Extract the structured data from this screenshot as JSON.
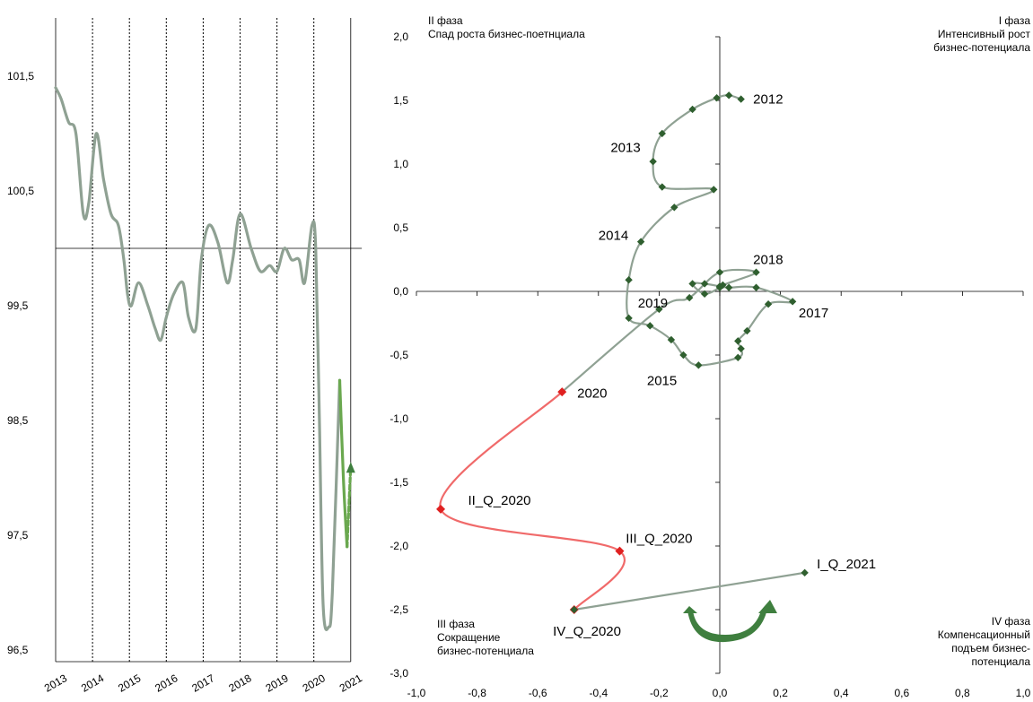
{
  "chart_data": [
    {
      "type": "line",
      "categories": [
        "2013",
        "2014",
        "2015",
        "2016",
        "2017",
        "2018",
        "2019",
        "2020",
        "2021"
      ],
      "y_ticks": [
        "101,5",
        "100,5",
        "99,5",
        "98,5",
        "97,5",
        "96,5"
      ],
      "ylim": [
        96.5,
        102.2
      ],
      "grid": "dotted vertical lines at year boundaries",
      "reference_line": 100,
      "series": [
        {
          "color": "#8fa193",
          "x": [
            2013.0,
            2013.15,
            2013.35,
            2013.55,
            2013.75,
            2013.9,
            2014.1,
            2014.3,
            2014.5,
            2014.7,
            2014.85,
            2014.95,
            2015.05,
            2015.25,
            2015.5,
            2015.7,
            2015.85,
            2016.0,
            2016.2,
            2016.45,
            2016.6,
            2016.8,
            2016.95,
            2017.15,
            2017.4,
            2017.65,
            2017.8,
            2018.0,
            2018.3,
            2018.55,
            2018.8,
            2019.0,
            2019.2,
            2019.4,
            2019.6,
            2019.75,
            2019.95,
            2020.05,
            2020.15,
            2020.25,
            2020.4,
            2020.5,
            2020.7
          ],
          "values": [
            101.4,
            101.3,
            101.1,
            101.0,
            100.3,
            100.4,
            101.0,
            100.6,
            100.3,
            100.2,
            99.9,
            99.6,
            99.5,
            99.7,
            99.5,
            99.3,
            99.2,
            99.4,
            99.6,
            99.7,
            99.4,
            99.3,
            99.9,
            100.2,
            100.05,
            99.7,
            99.9,
            100.3,
            100.0,
            99.8,
            99.85,
            99.8,
            100.0,
            99.9,
            99.9,
            99.7,
            100.2,
            100.0,
            98.5,
            96.9,
            96.7,
            97.0,
            98.85
          ]
        },
        {
          "color": "#6aa84f",
          "x": [
            2020.7,
            2020.8,
            2020.9
          ],
          "values": [
            98.85,
            98.0,
            97.4
          ]
        },
        {
          "color": "#6aa84f",
          "dashed": true,
          "x": [
            2020.9,
            2021.0
          ],
          "values": [
            97.4,
            98.1
          ]
        }
      ]
    },
    {
      "type": "scatter",
      "connected": true,
      "xlim": [
        -1.0,
        1.0
      ],
      "ylim": [
        -3.0,
        2.0
      ],
      "x_ticks": [
        "-1,0",
        "-0,8",
        "-0,6",
        "-0,4",
        "-0,2",
        "0,0",
        "0,2",
        "0,4",
        "0,6",
        "0,8",
        "1,0"
      ],
      "y_ticks": [
        "2,0",
        "1,5",
        "1,0",
        "0,5",
        "0,0",
        "-0,5",
        "-1,0",
        "-1,5",
        "-2,0",
        "-2,5",
        "-3,0"
      ],
      "phases": [
        {
          "title": "I фаза",
          "desc": [
            "Интенсивный рост",
            "бизнес-потенциала"
          ]
        },
        {
          "title": "II  фаза",
          "desc": [
            "Спад роста бизнес-поетнциала"
          ]
        },
        {
          "title": "III фаза",
          "desc": [
            "Сокращение",
            "бизнес-потенциала"
          ]
        },
        {
          "title": "IV фаза",
          "desc": [
            "Компенсационный",
            "подъем бизнес-",
            "потенциала"
          ]
        }
      ],
      "series": [
        {
          "color": "#8fa193",
          "marker_color": "#2f5f2f",
          "points": [
            [
              0.07,
              1.51
            ],
            [
              0.03,
              1.54
            ],
            [
              -0.01,
              1.52
            ],
            [
              -0.09,
              1.43
            ],
            [
              -0.19,
              1.24
            ],
            [
              -0.22,
              1.02
            ],
            [
              -0.19,
              0.82
            ],
            [
              -0.02,
              0.8
            ],
            [
              -0.15,
              0.66
            ],
            [
              -0.26,
              0.39
            ],
            [
              -0.3,
              0.09
            ],
            [
              -0.3,
              -0.21
            ],
            [
              -0.23,
              -0.27
            ],
            [
              -0.16,
              -0.38
            ],
            [
              -0.12,
              -0.5
            ],
            [
              -0.07,
              -0.58
            ],
            [
              0.06,
              -0.52
            ],
            [
              0.07,
              -0.45
            ],
            [
              0.06,
              -0.39
            ],
            [
              0.09,
              -0.31
            ],
            [
              0.16,
              -0.1
            ],
            [
              0.24,
              -0.08
            ],
            [
              0.12,
              0.03
            ],
            [
              0.03,
              0.03
            ],
            [
              0.0,
              0.04
            ],
            [
              -0.05,
              0.06
            ],
            [
              -0.09,
              0.06
            ],
            [
              -0.05,
              -0.02
            ],
            [
              0.0,
              0.03
            ],
            [
              0.01,
              0.05
            ],
            [
              0.12,
              0.15
            ],
            [
              0.0,
              0.15
            ],
            [
              -0.1,
              -0.05
            ],
            [
              -0.2,
              -0.14
            ],
            [
              -0.52,
              -0.79
            ]
          ]
        },
        {
          "color": "#f06a6a",
          "marker_color": "#e02020",
          "points": [
            [
              -0.52,
              -0.79
            ],
            [
              -0.92,
              -1.71
            ],
            [
              -0.33,
              -2.04
            ],
            [
              -0.48,
              -2.5
            ]
          ]
        },
        {
          "color": "#8fa193",
          "marker_color": "#2f5f2f",
          "points": [
            [
              -0.48,
              -2.5
            ],
            [
              0.28,
              -2.21
            ]
          ]
        }
      ],
      "labels": [
        {
          "text": "2012",
          "x": 0.11,
          "y": 1.51
        },
        {
          "text": "2013",
          "x": -0.36,
          "y": 1.13
        },
        {
          "text": "2014",
          "x": -0.4,
          "y": 0.44
        },
        {
          "text": "2018",
          "x": 0.11,
          "y": 0.25
        },
        {
          "text": "2017",
          "x": 0.26,
          "y": -0.17
        },
        {
          "text": "2019",
          "x": -0.27,
          "y": -0.09
        },
        {
          "text": "2015",
          "x": -0.24,
          "y": -0.7
        },
        {
          "text": "2020",
          "x": -0.47,
          "y": -0.8
        },
        {
          "text": "II_Q_2020",
          "x": -0.83,
          "y": -1.64
        },
        {
          "text": "III_Q_2020",
          "x": -0.31,
          "y": -1.94
        },
        {
          "text": "IV_Q_2020",
          "x": -0.55,
          "y": -2.67
        },
        {
          "text": "I_Q_2021",
          "x": 0.32,
          "y": -2.14
        }
      ]
    }
  ]
}
